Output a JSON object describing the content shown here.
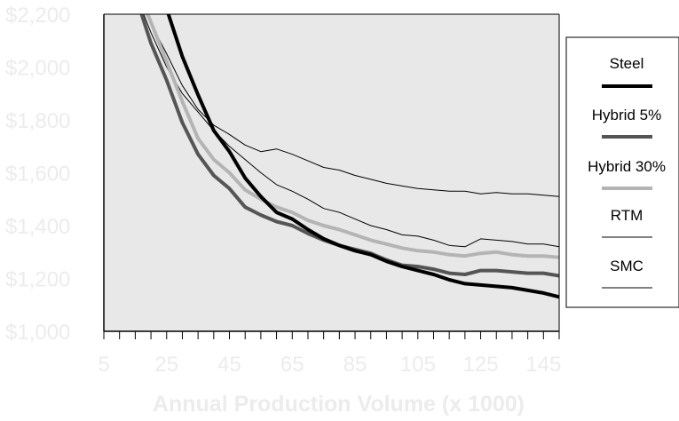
{
  "chart_data": {
    "type": "line",
    "title": "",
    "xlabel": "Annual Production Volume (x 1000)",
    "ylabel": "",
    "xlim": [
      5,
      150
    ],
    "ylim": [
      1000,
      2200
    ],
    "x_ticks": [
      5,
      25,
      45,
      65,
      85,
      105,
      125,
      145
    ],
    "x_tick_labels": [
      "5",
      "25",
      "45",
      "65",
      "85",
      "105",
      "125",
      "145"
    ],
    "y_ticks": [
      1000,
      1200,
      1400,
      1600,
      1800,
      2000,
      2200
    ],
    "y_tick_labels": [
      "$1,000",
      "$1,200",
      "$1,400",
      "$1,600",
      "$1,800",
      "$2,000",
      "$2,200"
    ],
    "plot_background": "#e8e8e8",
    "grid": false,
    "legend_position": "right",
    "series": [
      {
        "name": "Steel",
        "color": "#000000",
        "stroke": "thick",
        "points": [
          [
            25,
            2220
          ],
          [
            30,
            2040
          ],
          [
            35,
            1895
          ],
          [
            40,
            1760
          ],
          [
            45,
            1680
          ],
          [
            50,
            1580
          ],
          [
            55,
            1510
          ],
          [
            60,
            1450
          ],
          [
            65,
            1425
          ],
          [
            70,
            1385
          ],
          [
            75,
            1350
          ],
          [
            80,
            1325
          ],
          [
            85,
            1305
          ],
          [
            90,
            1290
          ],
          [
            95,
            1265
          ],
          [
            100,
            1245
          ],
          [
            105,
            1230
          ],
          [
            110,
            1215
          ],
          [
            115,
            1195
          ],
          [
            120,
            1180
          ],
          [
            125,
            1175
          ],
          [
            130,
            1170
          ],
          [
            135,
            1165
          ],
          [
            140,
            1155
          ],
          [
            145,
            1145
          ],
          [
            150,
            1130
          ]
        ]
      },
      {
        "name": "Hybrid 5%",
        "color": "#555555",
        "stroke": "thick",
        "points": [
          [
            17,
            2200
          ],
          [
            20,
            2090
          ],
          [
            25,
            1950
          ],
          [
            30,
            1790
          ],
          [
            35,
            1670
          ],
          [
            40,
            1590
          ],
          [
            45,
            1540
          ],
          [
            50,
            1470
          ],
          [
            55,
            1440
          ],
          [
            60,
            1415
          ],
          [
            65,
            1400
          ],
          [
            70,
            1370
          ],
          [
            75,
            1345
          ],
          [
            80,
            1325
          ],
          [
            85,
            1310
          ],
          [
            90,
            1295
          ],
          [
            95,
            1270
          ],
          [
            100,
            1250
          ],
          [
            105,
            1245
          ],
          [
            110,
            1235
          ],
          [
            115,
            1220
          ],
          [
            120,
            1215
          ],
          [
            125,
            1230
          ],
          [
            130,
            1230
          ],
          [
            135,
            1225
          ],
          [
            140,
            1220
          ],
          [
            145,
            1220
          ],
          [
            150,
            1210
          ]
        ]
      },
      {
        "name": "Hybrid 30%",
        "color": "#b4b4b4",
        "stroke": "thick",
        "points": [
          [
            19,
            2200
          ],
          [
            25,
            2020
          ],
          [
            30,
            1870
          ],
          [
            35,
            1730
          ],
          [
            40,
            1650
          ],
          [
            45,
            1600
          ],
          [
            50,
            1535
          ],
          [
            55,
            1500
          ],
          [
            60,
            1470
          ],
          [
            65,
            1450
          ],
          [
            70,
            1420
          ],
          [
            75,
            1400
          ],
          [
            80,
            1385
          ],
          [
            85,
            1365
          ],
          [
            90,
            1345
          ],
          [
            95,
            1330
          ],
          [
            100,
            1315
          ],
          [
            105,
            1305
          ],
          [
            110,
            1300
          ],
          [
            115,
            1290
          ],
          [
            120,
            1285
          ],
          [
            125,
            1295
          ],
          [
            130,
            1300
          ],
          [
            135,
            1290
          ],
          [
            140,
            1285
          ],
          [
            145,
            1285
          ],
          [
            150,
            1280
          ]
        ]
      },
      {
        "name": "RTM",
        "color": "#000000",
        "stroke": "thin",
        "points": [
          [
            18,
            2210
          ],
          [
            25,
            2050
          ],
          [
            30,
            1930
          ],
          [
            35,
            1840
          ],
          [
            40,
            1780
          ],
          [
            45,
            1745
          ],
          [
            50,
            1705
          ],
          [
            55,
            1680
          ],
          [
            60,
            1690
          ],
          [
            65,
            1670
          ],
          [
            70,
            1645
          ],
          [
            75,
            1620
          ],
          [
            80,
            1610
          ],
          [
            85,
            1590
          ],
          [
            90,
            1575
          ],
          [
            95,
            1560
          ],
          [
            100,
            1550
          ],
          [
            105,
            1540
          ],
          [
            110,
            1535
          ],
          [
            115,
            1530
          ],
          [
            120,
            1530
          ],
          [
            125,
            1520
          ],
          [
            130,
            1525
          ],
          [
            135,
            1520
          ],
          [
            140,
            1520
          ],
          [
            145,
            1515
          ],
          [
            150,
            1510
          ]
        ]
      },
      {
        "name": "SMC",
        "color": "#000000",
        "stroke": "thin",
        "points": [
          [
            17,
            2220
          ],
          [
            20,
            2130
          ],
          [
            25,
            2000
          ],
          [
            30,
            1900
          ],
          [
            35,
            1830
          ],
          [
            40,
            1760
          ],
          [
            45,
            1700
          ],
          [
            50,
            1650
          ],
          [
            55,
            1600
          ],
          [
            60,
            1555
          ],
          [
            65,
            1530
          ],
          [
            70,
            1500
          ],
          [
            75,
            1465
          ],
          [
            80,
            1450
          ],
          [
            85,
            1425
          ],
          [
            90,
            1400
          ],
          [
            95,
            1385
          ],
          [
            100,
            1365
          ],
          [
            105,
            1360
          ],
          [
            110,
            1345
          ],
          [
            115,
            1325
          ],
          [
            120,
            1320
          ],
          [
            125,
            1350
          ],
          [
            130,
            1345
          ],
          [
            135,
            1340
          ],
          [
            140,
            1330
          ],
          [
            145,
            1330
          ],
          [
            150,
            1320
          ]
        ]
      }
    ]
  }
}
